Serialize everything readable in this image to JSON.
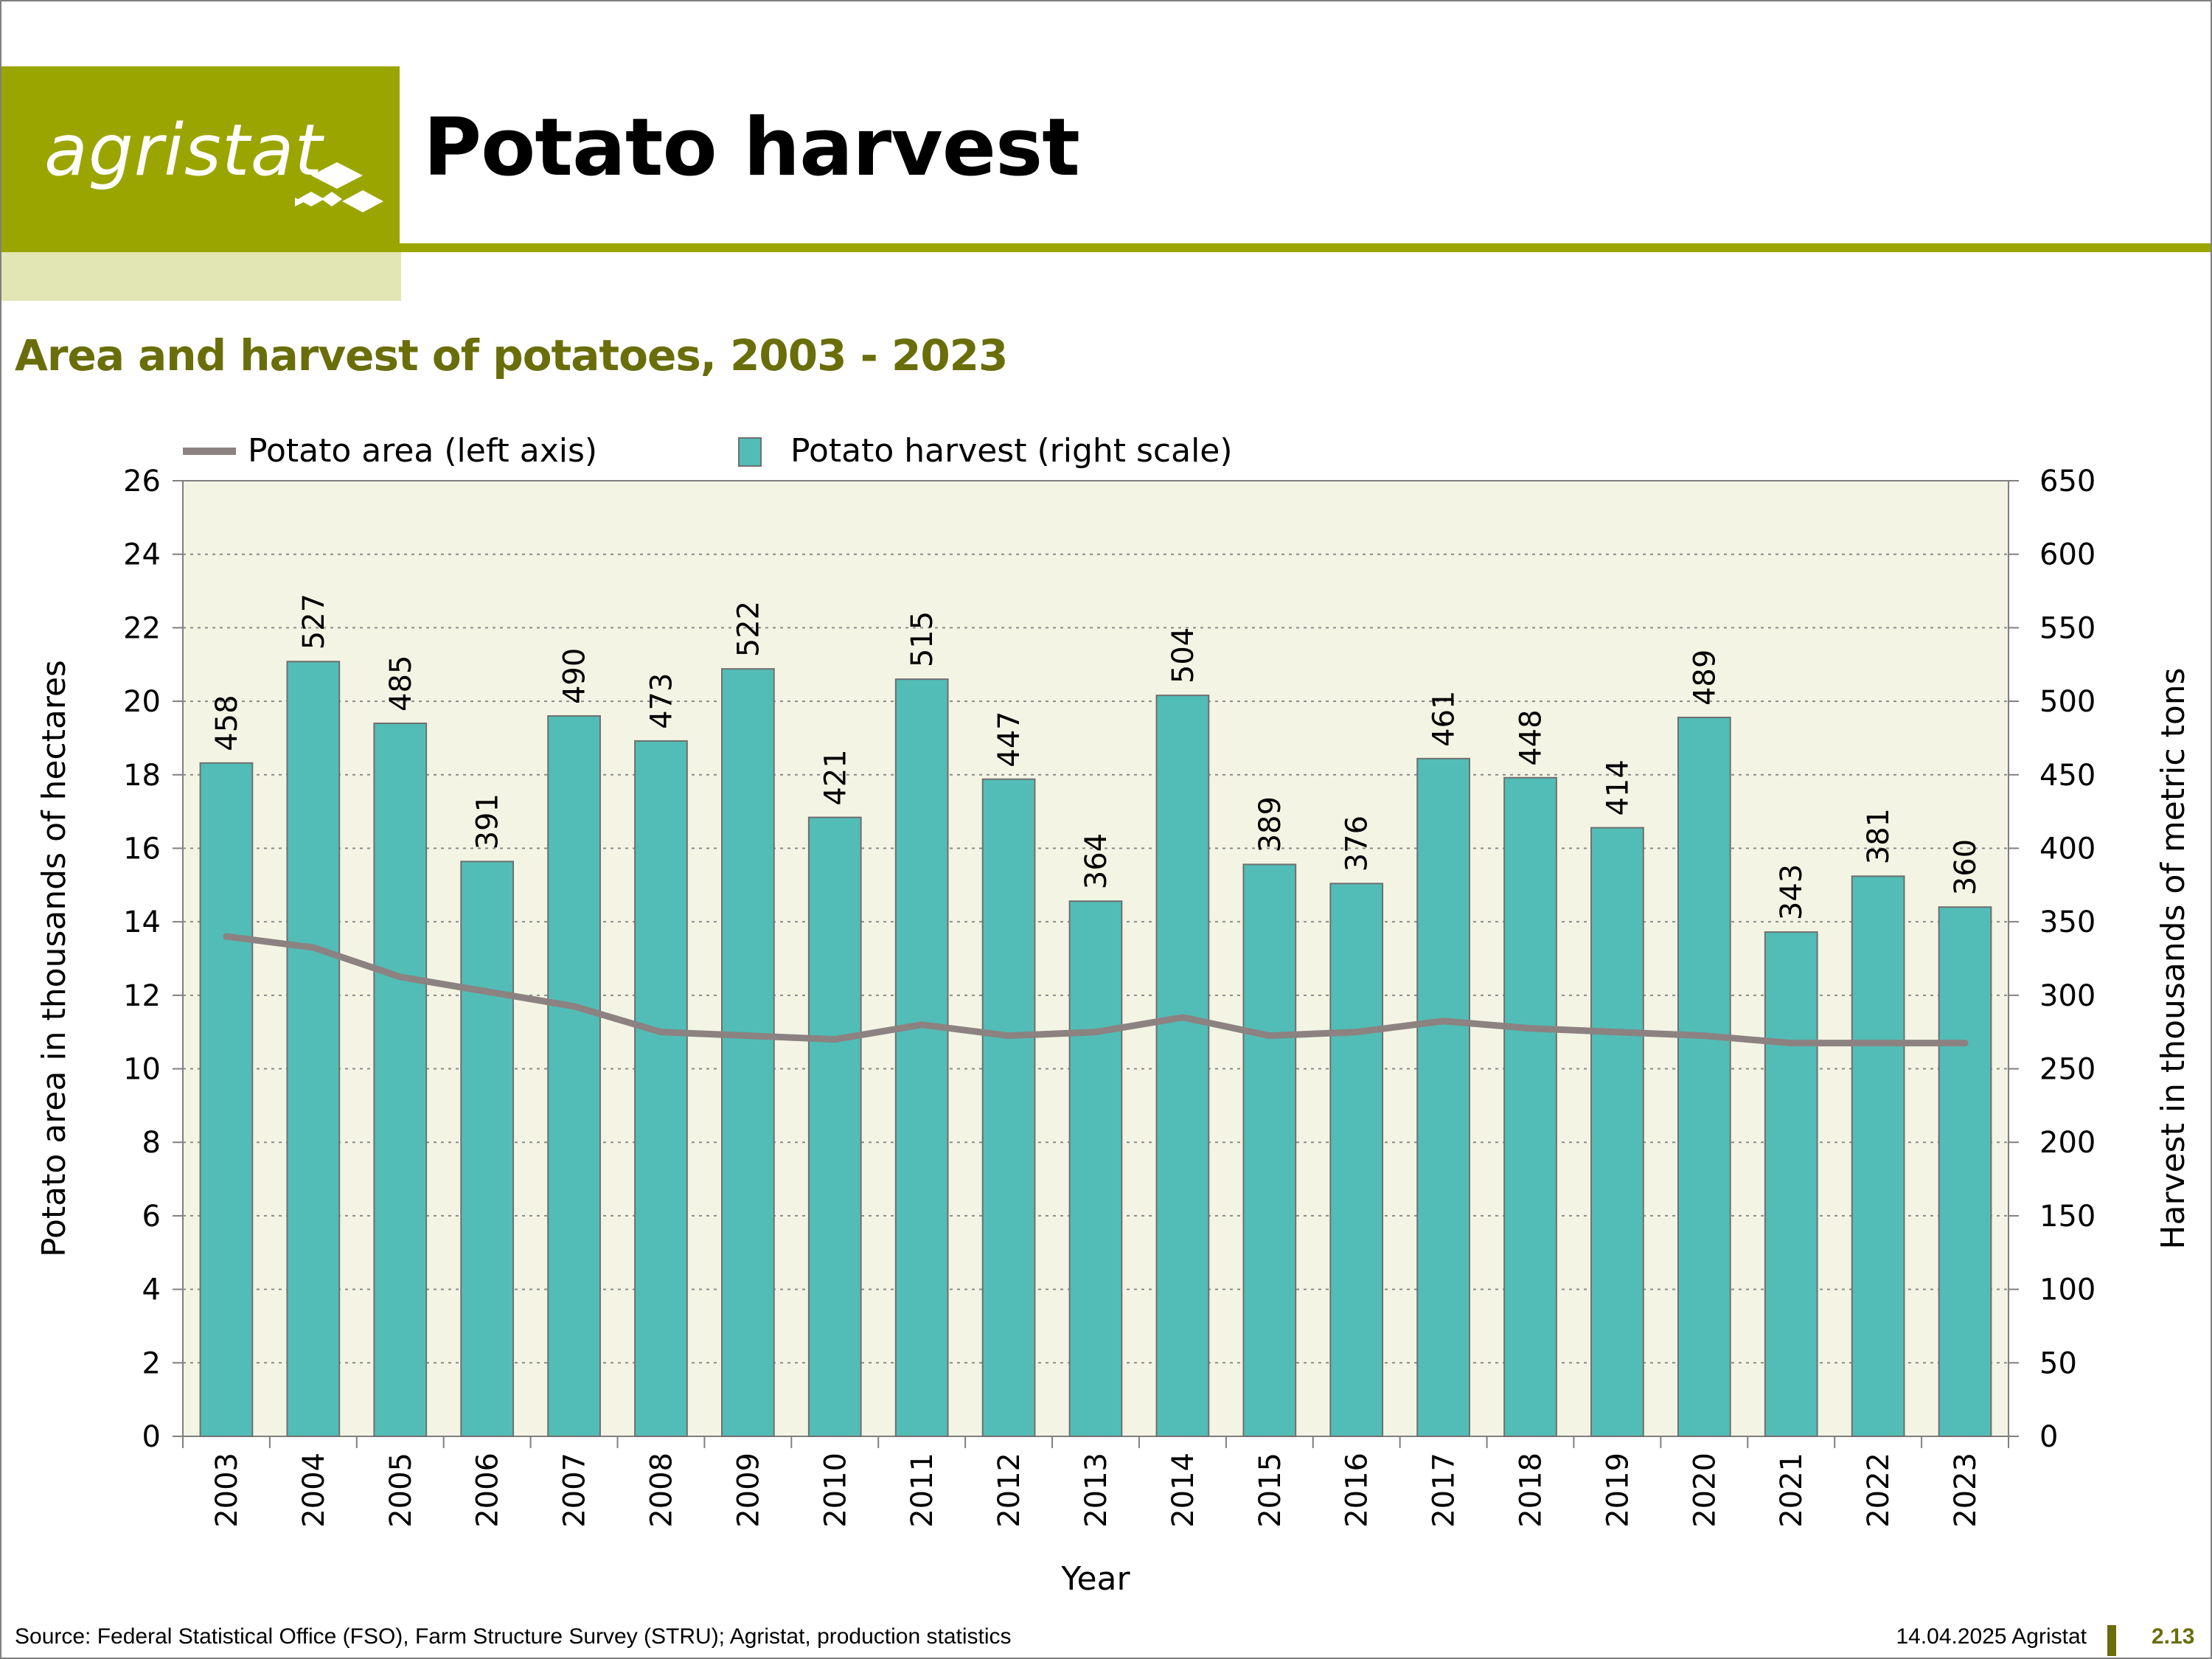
{
  "header": {
    "logo_text": "agristat",
    "title": "Potato harvest"
  },
  "subtitle": "Area and harvest of potatoes, 2003 - 2023",
  "colors": {
    "brand": "#9ba500",
    "brand_light": "#e2e6b5",
    "subtitle": "#6a6e0a",
    "bars": "#52bdb6",
    "line": "#8c8281",
    "plot_bg": "#f4f4e4"
  },
  "chart_data": {
    "type": "bar",
    "categories": [
      "2003",
      "2004",
      "2005",
      "2006",
      "2007",
      "2008",
      "2009",
      "2010",
      "2011",
      "2012",
      "2013",
      "2014",
      "2015",
      "2016",
      "2017",
      "2018",
      "2019",
      "2020",
      "2021",
      "2022",
      "2023"
    ],
    "series": [
      {
        "name": "Potato harvest (right scale)",
        "type": "bar",
        "axis": "right",
        "values": [
          458,
          527,
          485,
          391,
          490,
          473,
          522,
          421,
          515,
          447,
          364,
          504,
          389,
          376,
          461,
          448,
          414,
          489,
          343,
          381,
          360
        ]
      },
      {
        "name": "Potato area (left axis)",
        "type": "line",
        "axis": "left",
        "values": [
          13.6,
          13.3,
          12.5,
          12.1,
          11.7,
          11.0,
          10.9,
          10.8,
          11.2,
          10.9,
          11.0,
          11.4,
          10.9,
          11.0,
          11.3,
          11.1,
          11.0,
          10.9,
          10.7,
          10.7,
          10.7
        ]
      }
    ],
    "xlabel": "Year",
    "ylabel": "Potato area in thousands of hectares",
    "y2label": "Harvest in thousands of metric tons",
    "ylim": [
      0,
      26
    ],
    "yticks": [
      0,
      2,
      4,
      6,
      8,
      10,
      12,
      14,
      16,
      18,
      20,
      22,
      24,
      26
    ],
    "y2lim": [
      0,
      650
    ],
    "y2ticks": [
      0,
      50,
      100,
      150,
      200,
      250,
      300,
      350,
      400,
      450,
      500,
      550,
      600,
      650
    ],
    "grid": true,
    "legend": "top-left"
  },
  "footer": {
    "source": "Source: Federal Statistical Office (FSO), Farm Structure Survey (STRU); Agristat, production statistics",
    "date": "14.04.2025 Agristat",
    "page": "2.13"
  }
}
